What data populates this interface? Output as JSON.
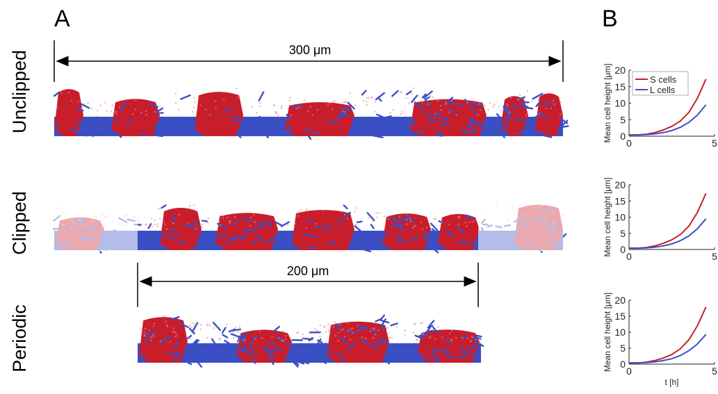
{
  "panel_labels": {
    "a": "A",
    "b": "B"
  },
  "rows": [
    {
      "label": "Unclipped"
    },
    {
      "label": "Clipped"
    },
    {
      "label": "Periodic"
    }
  ],
  "scale_bars": {
    "top": "300 μm",
    "bottom": "200 μm"
  },
  "colors": {
    "s_cells": "#c81e2c",
    "l_cells": "#3a4fc4"
  },
  "chart_data": [
    {
      "type": "line",
      "ylabel": "Mean cell height [μm]",
      "xlabel": "",
      "xlim": [
        0,
        5
      ],
      "ylim": [
        0,
        20
      ],
      "xticks": [
        "0",
        "5"
      ],
      "yticks": [
        "0",
        "5",
        "10",
        "15",
        "20"
      ],
      "legend": {
        "placement": "top-left",
        "entries": [
          "S cells",
          "L cells"
        ]
      },
      "series": [
        {
          "name": "S cells",
          "x": [
            0,
            0.5,
            1,
            1.5,
            2,
            2.5,
            3,
            3.5,
            4,
            4.5
          ],
          "y": [
            0.4,
            0.4,
            0.6,
            1.1,
            1.9,
            3.0,
            4.6,
            7.2,
            11.5,
            17.3
          ]
        },
        {
          "name": "L cells",
          "x": [
            0,
            0.5,
            1,
            1.5,
            2,
            2.5,
            3,
            3.5,
            4,
            4.5
          ],
          "y": [
            0.4,
            0.4,
            0.5,
            0.7,
            1.1,
            1.7,
            2.7,
            4.2,
            6.4,
            9.5
          ]
        }
      ]
    },
    {
      "type": "line",
      "ylabel": "Mean cell height [μm]",
      "xlabel": "",
      "xlim": [
        0,
        5
      ],
      "ylim": [
        0,
        20
      ],
      "xticks": [
        "0",
        "5"
      ],
      "yticks": [
        "0",
        "5",
        "10",
        "15",
        "20"
      ],
      "series": [
        {
          "name": "S cells",
          "x": [
            0,
            0.5,
            1,
            1.5,
            2,
            2.5,
            3,
            3.5,
            4,
            4.5
          ],
          "y": [
            0.4,
            0.4,
            0.6,
            1.1,
            1.9,
            3.0,
            4.6,
            7.2,
            11.5,
            17.4
          ]
        },
        {
          "name": "L cells",
          "x": [
            0,
            0.5,
            1,
            1.5,
            2,
            2.5,
            3,
            3.5,
            4,
            4.5
          ],
          "y": [
            0.4,
            0.4,
            0.5,
            0.7,
            1.1,
            1.7,
            2.7,
            4.2,
            6.4,
            9.5
          ]
        }
      ]
    },
    {
      "type": "line",
      "ylabel": "Mean cell height [μm]",
      "xlabel": "t [h]",
      "xlim": [
        0,
        5
      ],
      "ylim": [
        0,
        20
      ],
      "xticks": [
        "0",
        "5"
      ],
      "yticks": [
        "0",
        "5",
        "10",
        "15",
        "20"
      ],
      "series": [
        {
          "name": "S cells",
          "x": [
            0,
            0.5,
            1,
            1.5,
            2,
            2.5,
            3,
            3.5,
            4,
            4.5
          ],
          "y": [
            0.4,
            0.4,
            0.6,
            1.1,
            1.9,
            3.0,
            4.8,
            7.6,
            12.0,
            17.9
          ]
        },
        {
          "name": "L cells",
          "x": [
            0,
            0.5,
            1,
            1.5,
            2,
            2.5,
            3,
            3.5,
            4,
            4.5
          ],
          "y": [
            0.4,
            0.4,
            0.5,
            0.7,
            1.1,
            1.7,
            2.7,
            4.2,
            6.3,
            9.3
          ]
        }
      ]
    }
  ]
}
